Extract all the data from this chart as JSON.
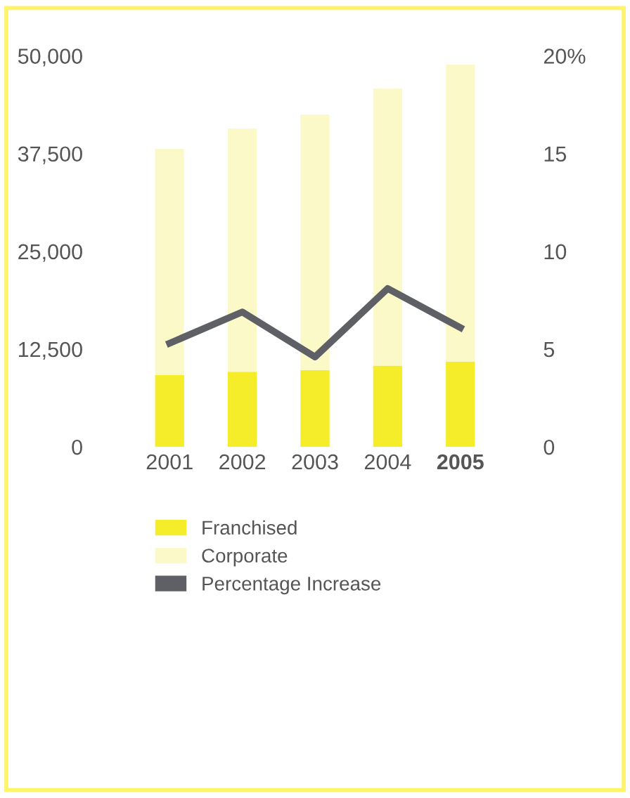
{
  "chart_data": {
    "type": "bar",
    "stacked": true,
    "categories": [
      "2001",
      "2002",
      "2003",
      "2004",
      "2005"
    ],
    "series": [
      {
        "name": "Franchised",
        "color": "#f5ec2a",
        "values": [
          9200,
          9600,
          9800,
          10400,
          10900
        ]
      },
      {
        "name": "Corporate",
        "color": "#fbf9c8",
        "values": [
          28900,
          31100,
          32700,
          35400,
          38000
        ]
      },
      {
        "name": "Percentage Increase",
        "color": "#5f6066",
        "type": "line",
        "axis": "y2",
        "values": [
          5.3,
          6.9,
          4.6,
          8.1,
          6.1
        ]
      }
    ],
    "ylim": [
      0,
      50000
    ],
    "yticks": [
      0,
      {
        "value": 12500,
        "label": "12,500"
      },
      {
        "value": 25000,
        "label": "25,000"
      },
      {
        "value": 37500,
        "label": "37,500"
      },
      {
        "value": 50000,
        "label": "50,000"
      }
    ],
    "y2lim": [
      0,
      20
    ],
    "y2ticks": [
      0,
      5,
      10,
      15,
      {
        "value": 20,
        "label": "20%"
      }
    ],
    "grid": false,
    "legend": "bottom",
    "marker": "none",
    "line_style": "solid"
  }
}
